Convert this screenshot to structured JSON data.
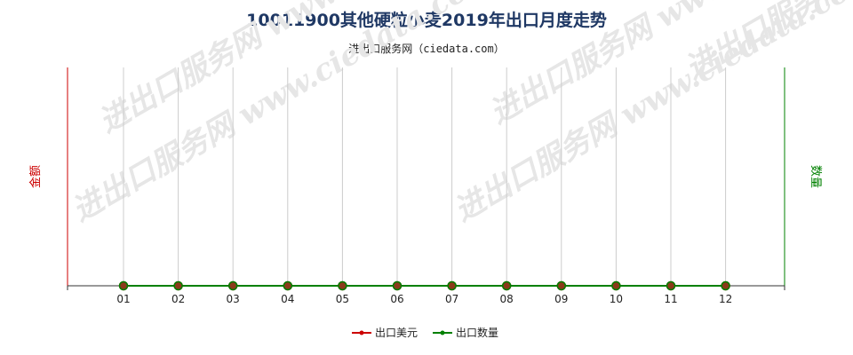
{
  "title": "10011900其他硬粒小麦2019年出口月度走势",
  "subtitle": "进出口服务网（ciedata.com）",
  "watermark": "进出口服务网 www.ciedata.com",
  "colors": {
    "left_axis": "#cc0000",
    "right_axis": "#008000",
    "amount": "#cc0000",
    "quantity": "#008000",
    "marker_fill": "#8b3a1a",
    "grid": "#cccccc"
  },
  "chart_data": {
    "type": "line",
    "title": "10011900其他硬粒小麦2019年出口月度走势",
    "categories": [
      "01",
      "02",
      "03",
      "04",
      "05",
      "06",
      "07",
      "08",
      "09",
      "10",
      "11",
      "12"
    ],
    "ylabel_left": "金额",
    "ylabel_right": "数量",
    "grid": "vertical",
    "legend_position": "bottom-center",
    "series": [
      {
        "name": "出口美元",
        "axis": "left",
        "color": "#cc0000",
        "values": [
          0,
          0,
          0,
          0,
          0,
          0,
          0,
          0,
          0,
          0,
          0,
          0
        ]
      },
      {
        "name": "出口数量",
        "axis": "right",
        "color": "#008000",
        "values": [
          0,
          0,
          0,
          0,
          0,
          0,
          0,
          0,
          0,
          0,
          0,
          0
        ]
      }
    ]
  }
}
